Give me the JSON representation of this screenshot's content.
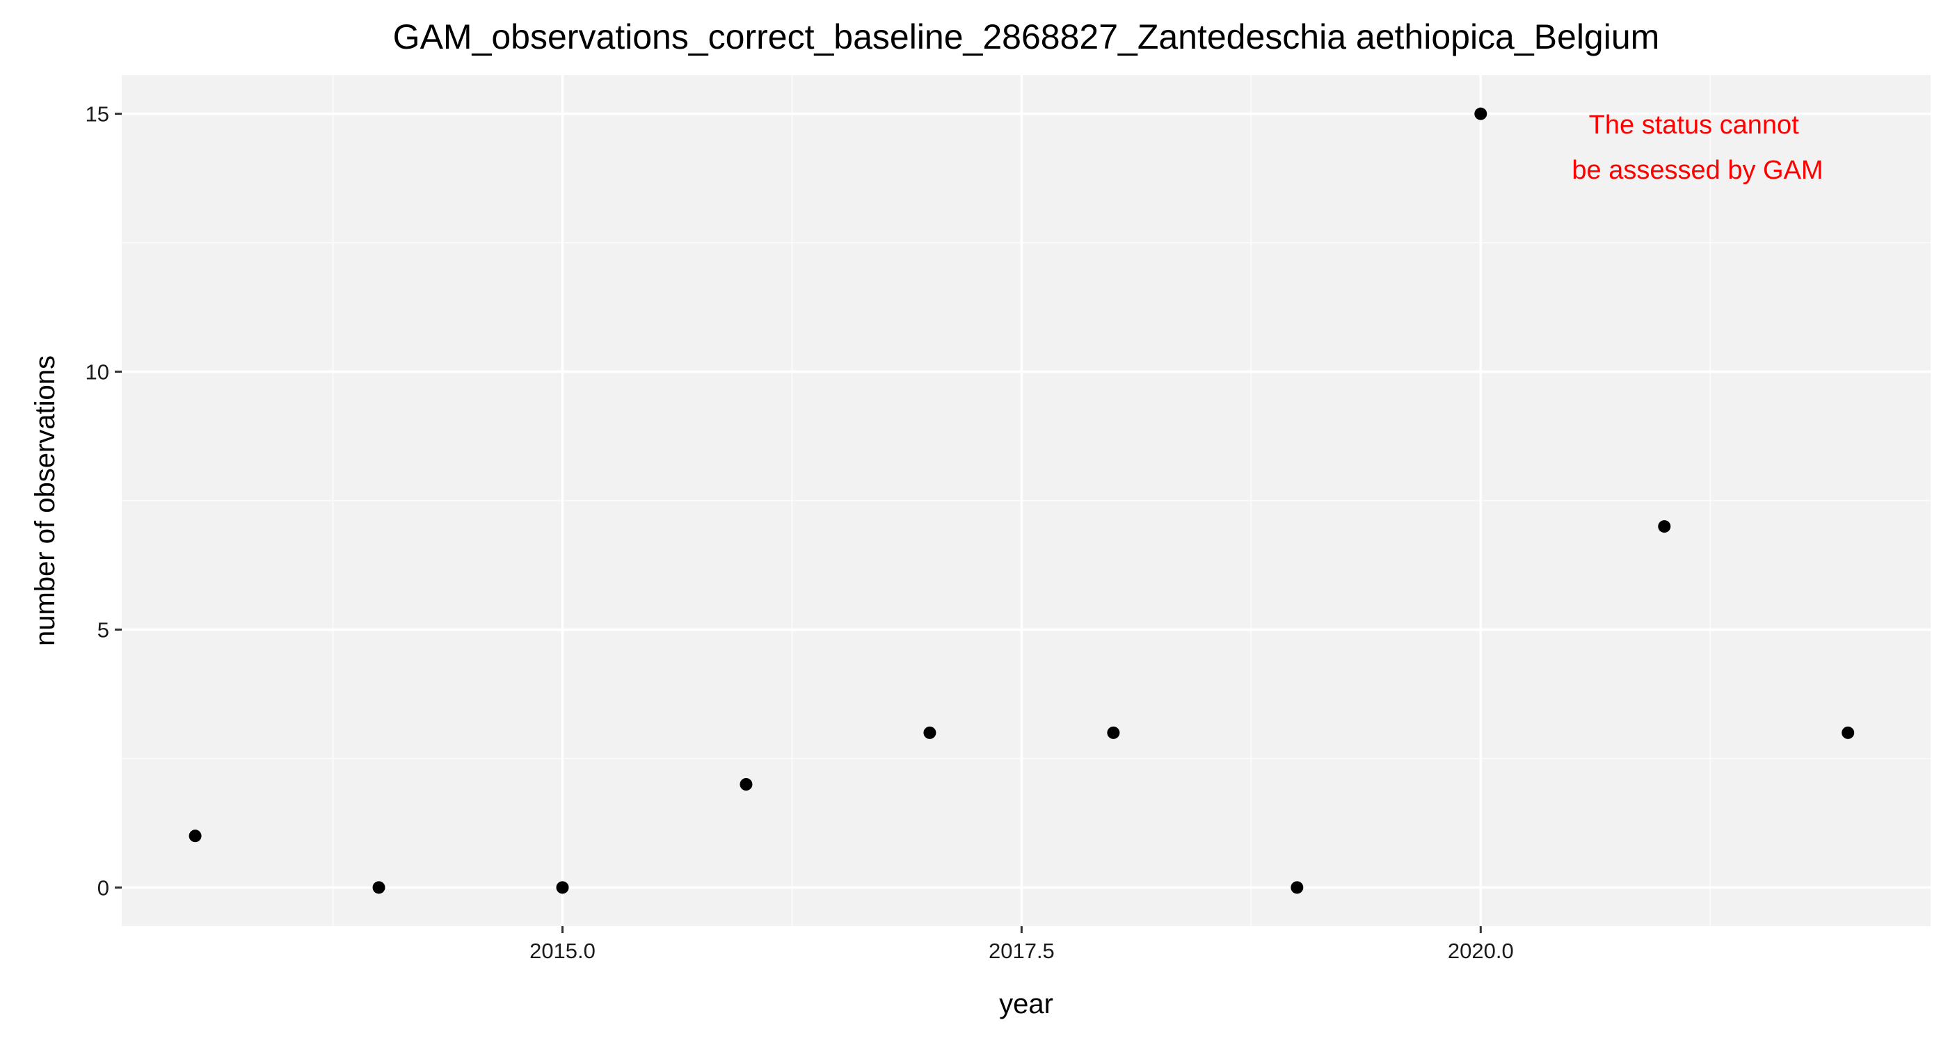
{
  "chart_data": {
    "type": "scatter",
    "title": "GAM_observations_correct_baseline_2868827_Zantedeschia aethiopica_Belgium",
    "xlabel": "year",
    "ylabel": "number of observations",
    "x": [
      2013,
      2014,
      2015,
      2016,
      2017,
      2018,
      2019,
      2020,
      2021,
      2022
    ],
    "y": [
      1,
      0,
      0,
      2,
      3,
      3,
      0,
      15,
      7,
      3
    ],
    "xlim": [
      2012.6,
      2022.45
    ],
    "ylim": [
      -0.75,
      15.75
    ],
    "x_ticks": [
      2015.0,
      2017.5,
      2020.0
    ],
    "x_tick_labels": [
      "2015.0",
      "2017.5",
      "2020.0"
    ],
    "y_ticks": [
      0,
      5,
      10,
      15
    ],
    "y_tick_labels": [
      "0",
      "5",
      "10",
      "15"
    ],
    "x_minor_ticks": [
      2013.75,
      2016.25,
      2018.75,
      2021.25
    ],
    "y_minor_ticks": [
      2.5,
      7.5,
      12.5
    ],
    "grid": true,
    "legend": "none",
    "annotation": {
      "lines": [
        "The status cannot",
        "be assessed by GAM"
      ],
      "color": "#ff0000"
    },
    "colors": {
      "panel_background": "#f2f2f2",
      "grid_major": "#ffffff",
      "grid_minor": "#fafafa",
      "points": "#000000"
    }
  }
}
